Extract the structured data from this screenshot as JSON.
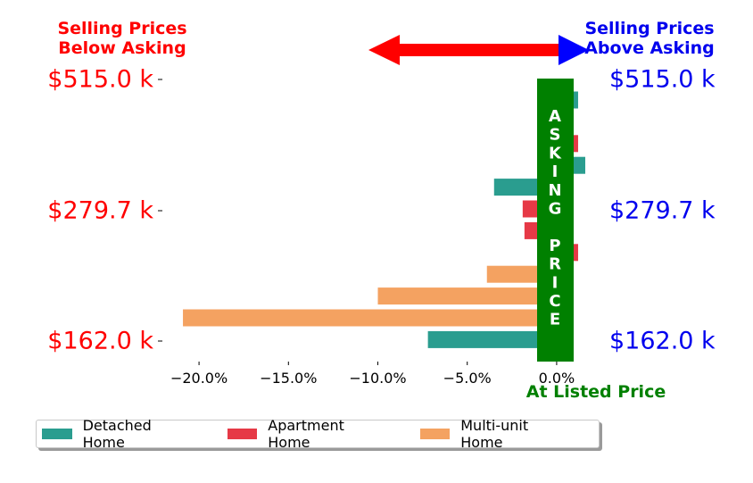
{
  "header": {
    "left_title": [
      "Selling Prices",
      "Below Asking"
    ],
    "right_title": [
      "Selling Prices",
      "Above Asking"
    ],
    "left_color": "#ff0000",
    "right_color": "#0000ee",
    "arrow_left_color": "#ff0000",
    "arrow_right_color": "#0000ff"
  },
  "asking_price": {
    "letters": [
      "A",
      "S",
      "K",
      "I",
      "N",
      "G",
      "",
      "P",
      "R",
      "I",
      "C",
      "E"
    ],
    "color": "#008000",
    "at_listed_label": "At Listed Price"
  },
  "price_labels": {
    "left": [
      "$515.0 k",
      "$279.7 k",
      "$162.0 k"
    ],
    "right": [
      "$515.0 k",
      "$279.7 k",
      "$162.0 k"
    ]
  },
  "legend": [
    {
      "label": "Detached Home",
      "color": "#2a9d8f"
    },
    {
      "label": "Apartment Home",
      "color": "#e63946"
    },
    {
      "label": "Multi-unit Home",
      "color": "#f4a261"
    }
  ],
  "chart_data": {
    "type": "bar",
    "orientation": "horizontal",
    "xlabel": "",
    "ylabel": "",
    "xlim": [
      -22,
      1.8
    ],
    "xticks": [
      -20,
      -15,
      -10,
      -5,
      0
    ],
    "xtick_labels": [
      "−20.0%",
      "−15.0%",
      "−10.0%",
      "−5.0%",
      "0.0%"
    ],
    "ytick_labels": [
      "$515.0 k",
      "$279.7 k",
      "$162.0 k"
    ],
    "bars": [
      {
        "series": "Detached Home",
        "value": 1.2
      },
      {
        "series": "Apartment Home",
        "value": -0.5
      },
      {
        "series": "Apartment Home",
        "value": 1.2
      },
      {
        "series": "Detached Home",
        "value": 1.6
      },
      {
        "series": "Detached Home",
        "value": -3.5
      },
      {
        "series": "Apartment Home",
        "value": -1.9
      },
      {
        "series": "Apartment Home",
        "value": -1.8
      },
      {
        "series": "Apartment Home",
        "value": 1.2
      },
      {
        "series": "Multi-unit Home",
        "value": -3.9
      },
      {
        "series": "Multi-unit Home",
        "value": -10.0
      },
      {
        "series": "Multi-unit Home",
        "value": -20.9
      },
      {
        "series": "Detached Home",
        "value": -7.2
      }
    ]
  }
}
